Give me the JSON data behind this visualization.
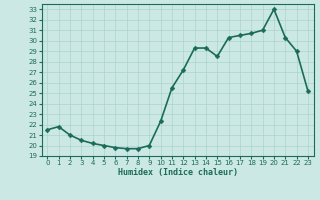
{
  "x": [
    0,
    1,
    2,
    3,
    4,
    5,
    6,
    7,
    8,
    9,
    10,
    11,
    12,
    13,
    14,
    15,
    16,
    17,
    18,
    19,
    20,
    21,
    22,
    23
  ],
  "y": [
    21.5,
    21.8,
    21.0,
    20.5,
    20.2,
    20.0,
    19.8,
    19.7,
    19.7,
    20.0,
    22.3,
    25.5,
    27.2,
    29.3,
    29.3,
    28.5,
    30.3,
    30.5,
    30.7,
    31.0,
    33.0,
    30.3,
    29.0,
    25.2
  ],
  "line_color": "#1a6b5a",
  "marker": "D",
  "markersize": 2.5,
  "background_color": "#cce8e4",
  "grid_color": "#aad4cc",
  "xlabel": "Humidex (Indice chaleur)",
  "xlim": [
    -0.5,
    23.5
  ],
  "ylim": [
    19,
    33.5
  ],
  "yticks": [
    19,
    20,
    21,
    22,
    23,
    24,
    25,
    26,
    27,
    28,
    29,
    30,
    31,
    32,
    33
  ],
  "xticks": [
    0,
    1,
    2,
    3,
    4,
    5,
    6,
    7,
    8,
    9,
    10,
    11,
    12,
    13,
    14,
    15,
    16,
    17,
    18,
    19,
    20,
    21,
    22,
    23
  ],
  "tick_color": "#1a6b5a",
  "label_color": "#1a6b5a",
  "linewidth": 1.2
}
